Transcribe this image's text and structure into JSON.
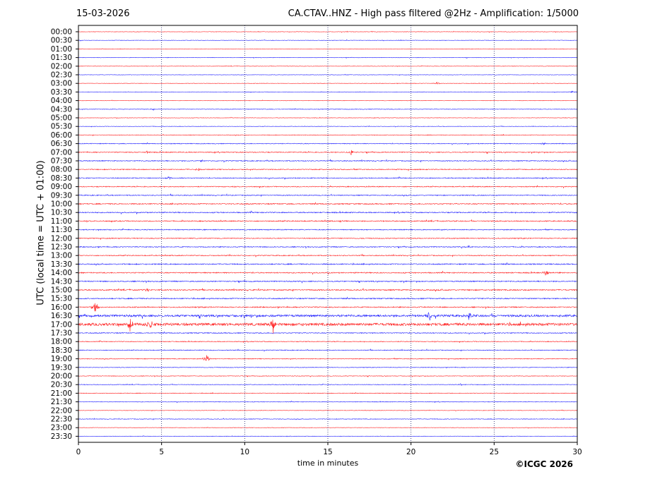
{
  "header": {
    "date": "15-03-2026",
    "title": "CA.CTAV..HNZ - High pass filtered @2Hz - Amplification: 1/5000"
  },
  "footer": {
    "copyright": "©ICGC 2026"
  },
  "chart_data": {
    "type": "line",
    "title": "CA.CTAV..HNZ - High pass filtered @2Hz - Amplification: 1/5000",
    "xlabel": "time in minutes",
    "ylabel": "UTC (local time = UTC + 01:00)",
    "xlim": [
      0,
      30
    ],
    "x_ticks": [
      0,
      5,
      10,
      15,
      20,
      25,
      30
    ],
    "grid": "vertical dotted at x ticks",
    "trace_colors": [
      "#ff0000",
      "#0000ff"
    ],
    "rows": [
      "00:00",
      "00:30",
      "01:00",
      "01:30",
      "02:00",
      "02:30",
      "03:00",
      "03:30",
      "04:00",
      "04:30",
      "05:00",
      "05:30",
      "06:00",
      "06:30",
      "07:00",
      "07:30",
      "08:00",
      "08:30",
      "09:00",
      "09:30",
      "10:00",
      "10:30",
      "11:00",
      "11:30",
      "12:00",
      "12:30",
      "13:00",
      "13:30",
      "14:00",
      "14:30",
      "15:00",
      "15:30",
      "16:00",
      "16:30",
      "17:00",
      "17:30",
      "18:00",
      "18:30",
      "19:00",
      "19:30",
      "20:00",
      "20:30",
      "21:00",
      "21:30",
      "22:00",
      "22:30",
      "23:00",
      "23:30"
    ],
    "noise_level": [
      0.3,
      0.3,
      0.3,
      0.3,
      0.3,
      0.3,
      0.3,
      0.3,
      0.3,
      0.4,
      0.3,
      0.3,
      0.4,
      0.5,
      0.6,
      0.6,
      0.6,
      0.6,
      0.6,
      0.6,
      0.7,
      0.7,
      0.7,
      0.6,
      0.6,
      0.6,
      0.6,
      0.7,
      0.7,
      0.7,
      0.8,
      0.7,
      0.7,
      1.4,
      1.8,
      0.6,
      0.5,
      0.5,
      0.5,
      0.4,
      0.4,
      0.4,
      0.4,
      0.4,
      0.3,
      0.4,
      0.3,
      0.3
    ],
    "events": [
      {
        "row": "03:00",
        "x": 21.6,
        "amplitude": 1.2
      },
      {
        "row": "03:30",
        "x": 29.7,
        "amplitude": 1.0
      },
      {
        "row": "04:30",
        "x": 4.5,
        "amplitude": 1.0
      },
      {
        "row": "06:30",
        "x": 28.0,
        "amplitude": 1.2
      },
      {
        "row": "07:00",
        "x": 4.1,
        "amplitude": 1.8
      },
      {
        "row": "07:00",
        "x": 16.4,
        "amplitude": 2.5
      },
      {
        "row": "07:30",
        "x": 7.4,
        "amplitude": 1.5
      },
      {
        "row": "08:00",
        "x": 7.2,
        "amplitude": 1.5
      },
      {
        "row": "08:30",
        "x": 5.5,
        "amplitude": 2.0
      },
      {
        "row": "11:00",
        "x": 15.7,
        "amplitude": 1.5
      },
      {
        "row": "12:30",
        "x": 23.5,
        "amplitude": 1.5
      },
      {
        "row": "14:00",
        "x": 28.1,
        "amplitude": 3.0
      },
      {
        "row": "15:00",
        "x": 4.2,
        "amplitude": 1.8
      },
      {
        "row": "16:00",
        "x": 1.0,
        "amplitude": 7.0
      },
      {
        "row": "16:30",
        "x": 21.1,
        "amplitude": 6.0
      },
      {
        "row": "16:30",
        "x": 23.5,
        "amplitude": 4.0
      },
      {
        "row": "17:00",
        "x": 3.1,
        "amplitude": 6.0
      },
      {
        "row": "17:00",
        "x": 4.3,
        "amplitude": 5.0
      },
      {
        "row": "17:00",
        "x": 11.7,
        "amplitude": 8.0
      },
      {
        "row": "19:00",
        "x": 7.7,
        "amplitude": 5.5
      },
      {
        "row": "20:30",
        "x": 23.0,
        "amplitude": 1.2
      }
    ]
  }
}
